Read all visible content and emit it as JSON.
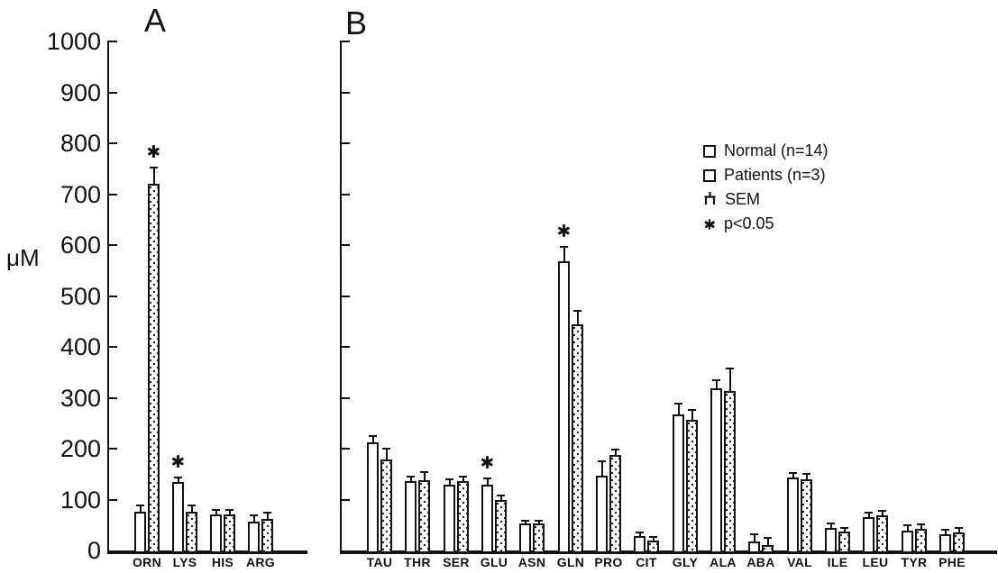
{
  "figure": {
    "ylabel": "μM",
    "panel_a_label": "A",
    "panel_b_label": "B",
    "legend": {
      "normal_label": "Normal (n=14)",
      "patients_label": "Patients (n=3)",
      "sem_label": "SEM",
      "significance_label": "p<0.05"
    }
  },
  "chart_data": [
    {
      "type": "bar",
      "panel": "A",
      "ylabel": "μM",
      "ylim": [
        0,
        1000
      ],
      "ytick_step": 100,
      "yticks_labeled": true,
      "grid": false,
      "categories": [
        "ORN",
        "LYS",
        "HIS",
        "ARG"
      ],
      "series": [
        {
          "name": "Normal (n=14)",
          "fill": "plain",
          "values": [
            76,
            134,
            71,
            57
          ],
          "sem": [
            12,
            9,
            9,
            12
          ]
        },
        {
          "name": "Patients (n=3)",
          "fill": "stippled",
          "values": [
            720,
            76,
            71,
            62
          ],
          "sem": [
            32,
            12,
            9,
            12
          ]
        }
      ],
      "significant": [
        {
          "category": "ORN",
          "series": "Patients (n=3)",
          "marker": "p<0.05"
        },
        {
          "category": "LYS",
          "series": "Normal (n=14)",
          "marker": "p<0.05"
        }
      ]
    },
    {
      "type": "bar",
      "panel": "B",
      "ylabel": "μM",
      "ylim": [
        0,
        1000
      ],
      "ytick_step": 100,
      "yticks_labeled": false,
      "grid": false,
      "legend_position": "upper right",
      "categories": [
        "TAU",
        "THR",
        "SER",
        "GLU",
        "ASN",
        "GLN",
        "PRO",
        "CIT",
        "GLY",
        "ALA",
        "ABA",
        "VAL",
        "ILE",
        "LEU",
        "TYR",
        "PHE"
      ],
      "series": [
        {
          "name": "Normal (n=14)",
          "fill": "plain",
          "values": [
            212,
            136,
            129,
            129,
            53,
            568,
            147,
            28,
            267,
            319,
            18,
            143,
            44,
            65,
            39,
            31
          ],
          "sem": [
            13,
            9,
            11,
            12,
            5,
            28,
            28,
            7,
            21,
            15,
            13,
            10,
            9,
            9,
            11,
            9
          ]
        },
        {
          "name": "Patients (n=3)",
          "fill": "stippled",
          "values": [
            178,
            138,
            136,
            100,
            53,
            444,
            187,
            20,
            256,
            313,
            11,
            140,
            37,
            69,
            43,
            35
          ],
          "sem": [
            22,
            16,
            9,
            8,
            5,
            26,
            11,
            6,
            20,
            45,
            13,
            10,
            7,
            9,
            9,
            9
          ]
        }
      ],
      "significant": [
        {
          "category": "GLU",
          "series": "Normal (n=14)",
          "marker": "p<0.05"
        },
        {
          "category": "GLN",
          "series": "Normal (n=14)",
          "marker": "p<0.05"
        }
      ]
    }
  ]
}
